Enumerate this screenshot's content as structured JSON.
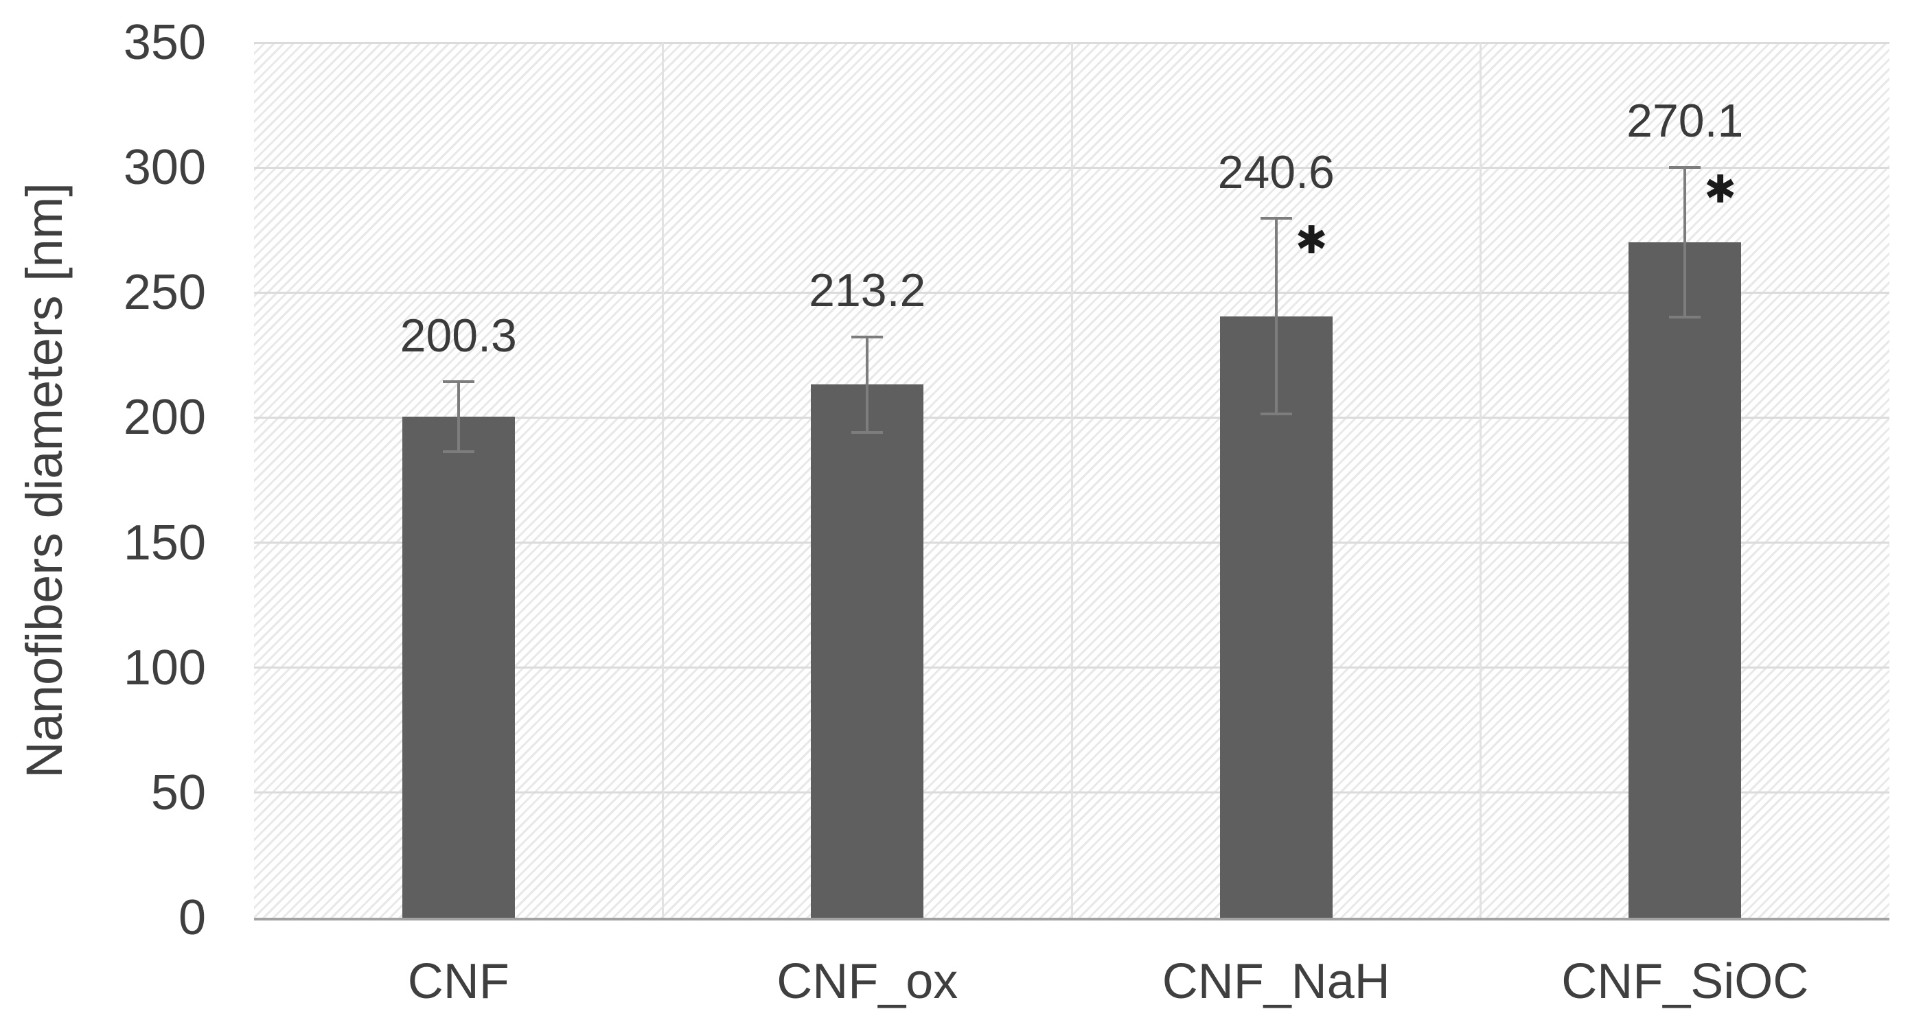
{
  "chart_data": {
    "type": "bar",
    "title": "",
    "ylabel": "Nanofibers diameters [nm]",
    "xlabel": "",
    "categories": [
      "CNF",
      "CNF_ox",
      "CNF_NaH",
      "CNF_SiOC"
    ],
    "values": [
      200.3,
      213.2,
      240.6,
      270.1
    ],
    "data_labels": [
      "200.3",
      "213.2",
      "240.6",
      "270.1"
    ],
    "error_bars": [
      14,
      19,
      39,
      30
    ],
    "significance": [
      false,
      false,
      true,
      true
    ],
    "significance_marker": "✱",
    "ylim": [
      0,
      350
    ],
    "ytick_interval": 50,
    "yticks": [
      "0",
      "50",
      "100",
      "150",
      "200",
      "250",
      "300",
      "350"
    ],
    "legend": "none",
    "grid": "horizontal-major + vertical-category-separators",
    "plot_background": "light-diagonal-hatch",
    "colors": {
      "bar": "#5f5f5f",
      "error_bar": "#7d7d7d",
      "h_gridline": "#dbdbdb",
      "v_gridline": "#e2e2e2",
      "axis_line": "#a2a2a2",
      "text": "#3f3f3f",
      "hatch_line": "#e8e8e8",
      "background": "#ffffff"
    }
  }
}
